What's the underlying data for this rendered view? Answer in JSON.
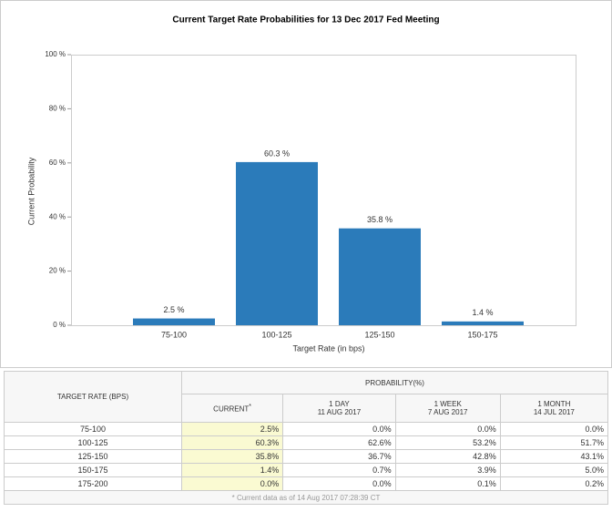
{
  "chart_data": {
    "type": "bar",
    "title": "Current Target Rate Probabilities for 13 Dec 2017 Fed Meeting",
    "x_label": "Target Rate (in bps)",
    "y_label": "Current Probability",
    "categories": [
      "75-100",
      "100-125",
      "125-150",
      "150-175"
    ],
    "values": [
      2.5,
      60.3,
      35.8,
      1.4
    ],
    "value_labels": [
      "2.5 %",
      "60.3 %",
      "35.8 %",
      "1.4 %"
    ],
    "color": "#2b7bba",
    "ylim": [
      0,
      100
    ],
    "yticks": [
      {
        "value": 0,
        "label": "0 %"
      },
      {
        "value": 20,
        "label": "20 %"
      },
      {
        "value": 40,
        "label": "40 %"
      },
      {
        "value": 60,
        "label": "60 %"
      },
      {
        "value": 80,
        "label": "80 %"
      },
      {
        "value": 100,
        "label": "100 %"
      }
    ]
  },
  "table": {
    "target_rate": "TARGET RATE (BPS)",
    "probability": "PROBABILITY(%)",
    "columns": [
      {
        "label": "CURRENT",
        "note": "*"
      },
      {
        "label": "1 DAY",
        "date": "11 AUG 2017"
      },
      {
        "label": "1 WEEK",
        "date": "7 AUG 2017"
      },
      {
        "label": "1 MONTH",
        "date": "14 JUL 2017"
      }
    ],
    "rows": [
      [
        "75-100",
        "2.5%",
        "0.0%",
        "0.0%",
        "0.0%"
      ],
      [
        "100-125",
        "60.3%",
        "62.6%",
        "53.2%",
        "51.7%"
      ],
      [
        "125-150",
        "35.8%",
        "36.7%",
        "42.8%",
        "43.1%"
      ],
      [
        "150-175",
        "1.4%",
        "0.7%",
        "3.9%",
        "5.0%"
      ],
      [
        "175-200",
        "0.0%",
        "0.0%",
        "0.1%",
        "0.2%"
      ]
    ],
    "footnote": "* Current data as of 14 Aug 2017 07:28:39 CT"
  }
}
